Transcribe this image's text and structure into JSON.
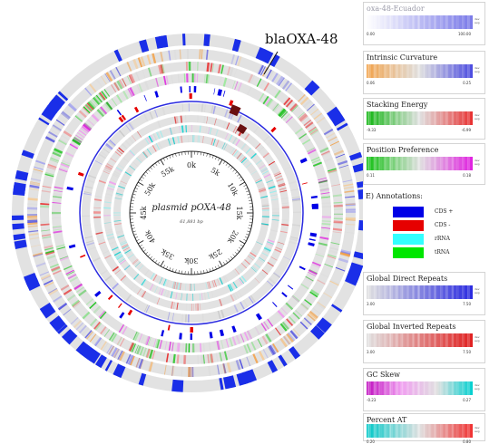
{
  "map": {
    "title": "plasmid pOXA-48",
    "length_label": "61,881 bp",
    "callout_label": "blaOXA-48",
    "ticks": [
      "0k",
      "5k",
      "10k",
      "15k",
      "20k",
      "25k",
      "30k",
      "35k",
      "40k",
      "45k",
      "50k",
      "55k"
    ]
  },
  "legend": [
    {
      "title": "oxa-48-Ecuador",
      "min": "0.00",
      "max": "100.00",
      "faint": true,
      "gradient": [
        "#ffffff",
        "#7a7ae8"
      ]
    },
    {
      "title": "Intrinsic Curvature",
      "min": "0.06",
      "max": "0.25",
      "faint": false,
      "gradient": [
        "#f2a24a",
        "#e0e0e0",
        "#4a4ae0"
      ]
    },
    {
      "title": "Stacking Energy",
      "min": "-9.33",
      "max": "-6.99",
      "faint": false,
      "gradient": [
        "#0fb50f",
        "#e0e0e0",
        "#e83030"
      ]
    },
    {
      "title": "Position Preference",
      "min": "0.11",
      "max": "0.18",
      "faint": false,
      "gradient": [
        "#10c010",
        "#e0e0e0",
        "#e020e0"
      ]
    },
    {
      "title": "Global Direct Repeats",
      "min": "3.00",
      "max": "7.50",
      "faint": false,
      "gradient": [
        "#e0e0e0",
        "#2a2ae0"
      ]
    },
    {
      "title": "Global Inverted Repeats",
      "min": "3.00",
      "max": "7.50",
      "faint": false,
      "gradient": [
        "#e0e0e0",
        "#e02020"
      ]
    },
    {
      "title": "GC Skew",
      "min": "-0.23",
      "max": "0.27",
      "faint": false,
      "gradient": [
        "#c010c0",
        "#f0a0f0",
        "#e0e0e0",
        "#00d0d0"
      ]
    },
    {
      "title": "Percent AT",
      "min": "0.20",
      "max": "0.80",
      "faint": false,
      "gradient": [
        "#00c8c8",
        "#e0e0e0",
        "#f03030"
      ]
    }
  ],
  "legend_side": "dev avg",
  "annotations": {
    "heading": "E) Annotations:",
    "items": [
      {
        "label": "CDS +",
        "color": "#0000e6"
      },
      {
        "label": "CDS -",
        "color": "#e60000"
      },
      {
        "label": "rRNA",
        "color": "#33ffff"
      },
      {
        "label": "tRNA",
        "color": "#00e600"
      }
    ]
  }
}
